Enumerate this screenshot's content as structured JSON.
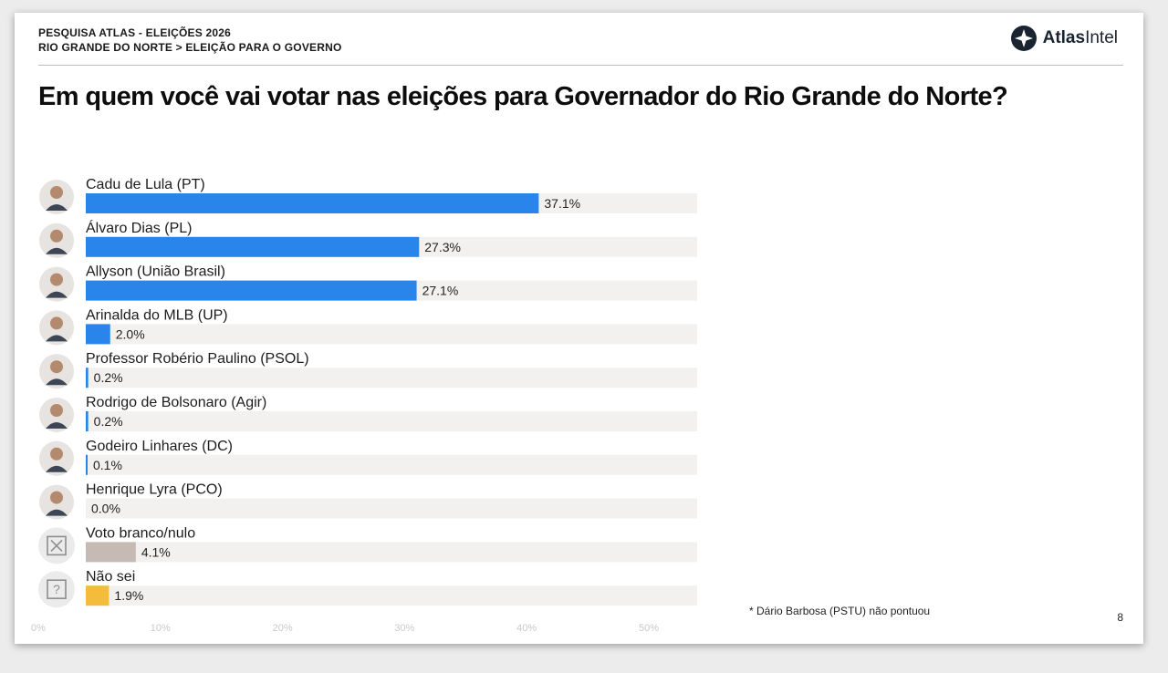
{
  "header": {
    "line1": "PESQUISA ATLAS - ELEIÇÕES 2026",
    "line2": "RIO GRANDE DO NORTE > ELEIÇÃO PARA O GOVERNO",
    "logo_bold": "Atlas",
    "logo_light": "Intel"
  },
  "chart_data": {
    "type": "bar",
    "orientation": "horizontal",
    "title": "Em quem você vai votar nas eleições para Governador do Rio Grande do Norte?",
    "xlim": [
      0,
      50
    ],
    "ticks": [
      "0%",
      "10%",
      "20%",
      "30%",
      "40%",
      "50%"
    ],
    "categories": [
      "Cadu de Lula (PT)",
      "Álvaro Dias (PL)",
      "Allyson (União Brasil)",
      "Arinalda do MLB (UP)",
      "Professor Robério Paulino (PSOL)",
      "Rodrigo de Bolsonaro (Agir)",
      "Godeiro Linhares (DC)",
      "Henrique Lyra (PCO)",
      "Voto branco/nulo",
      "Não sei"
    ],
    "values": [
      37.1,
      27.3,
      27.1,
      2.0,
      0.2,
      0.2,
      0.1,
      0.0,
      4.1,
      1.9
    ],
    "value_labels": [
      "37.1%",
      "27.3%",
      "27.1%",
      "2.0%",
      "0.2%",
      "0.2%",
      "0.1%",
      "0.0%",
      "4.1%",
      "1.9%"
    ],
    "bar_colors": [
      "#2a85ea",
      "#2a85ea",
      "#2a85ea",
      "#2a85ea",
      "#2a85ea",
      "#2a85ea",
      "#2a85ea",
      "#2a85ea",
      "#c6bab5",
      "#f3bd3b"
    ],
    "track_color": "#f2f1ef",
    "avatars": [
      "person-photo",
      "person-photo",
      "person-photo",
      "person-photo",
      "person-photo",
      "person-photo",
      "person-photo",
      "person-photo",
      "x-box-icon",
      "question-box-icon"
    ],
    "grid": false
  },
  "footnote": "* Dário Barbosa (PSTU) não pontuou",
  "page_number": "8"
}
